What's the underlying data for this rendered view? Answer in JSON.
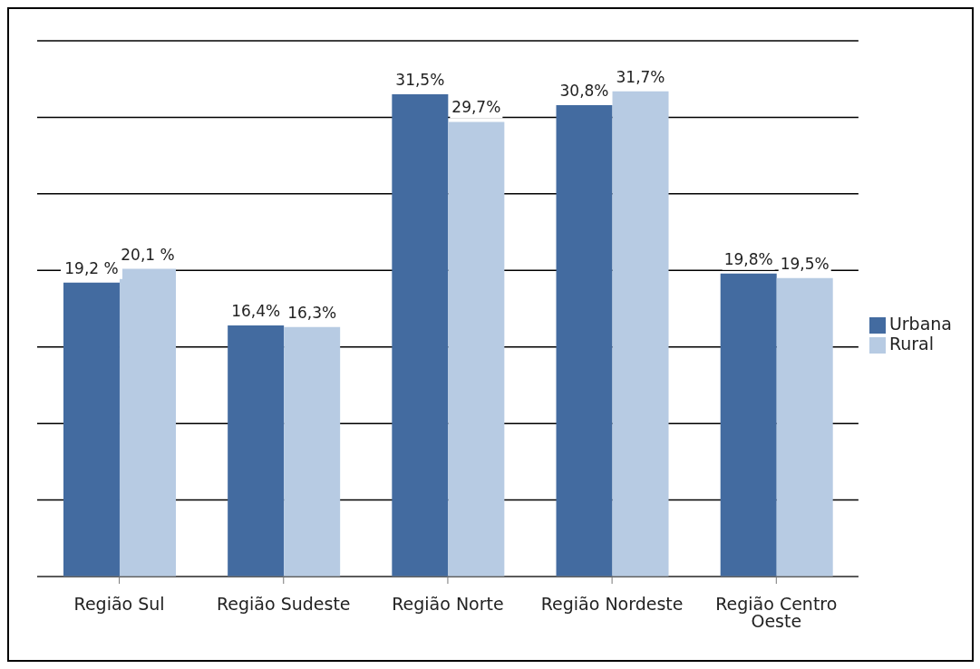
{
  "chart_data": {
    "type": "bar",
    "categories": [
      "Região Sul",
      "Região Sudeste",
      "Região Norte",
      "Região Nordeste",
      "Região  Centro Oeste"
    ],
    "series": [
      {
        "name": "Urbana",
        "color": "#436ba0",
        "values": [
          19.2,
          16.4,
          31.5,
          30.8,
          19.8
        ],
        "value_labels": [
          "19,2 %",
          "16,4%",
          "31,5%",
          "30,8%",
          "19,8%"
        ]
      },
      {
        "name": "Rural",
        "color": "#b7cbe3",
        "values": [
          20.1,
          16.3,
          29.7,
          31.7,
          19.5
        ],
        "value_labels": [
          "20,1 %",
          "16,3%",
          "29,7%",
          "31,7%",
          "19,5%"
        ]
      }
    ],
    "ylim": [
      0,
      35
    ],
    "yticks": [
      {
        "value": 0,
        "label": null
      },
      {
        "value": 5,
        "label": null
      },
      {
        "value": 10,
        "label": null
      },
      {
        "value": 15,
        "label": null
      },
      {
        "value": 20,
        "label": null
      },
      {
        "value": 25,
        "label": null
      },
      {
        "value": 30,
        "label": null
      },
      {
        "value": 35,
        "label": null
      }
    ],
    "tick_labels": "x",
    "grid": "y",
    "legend": "right"
  }
}
